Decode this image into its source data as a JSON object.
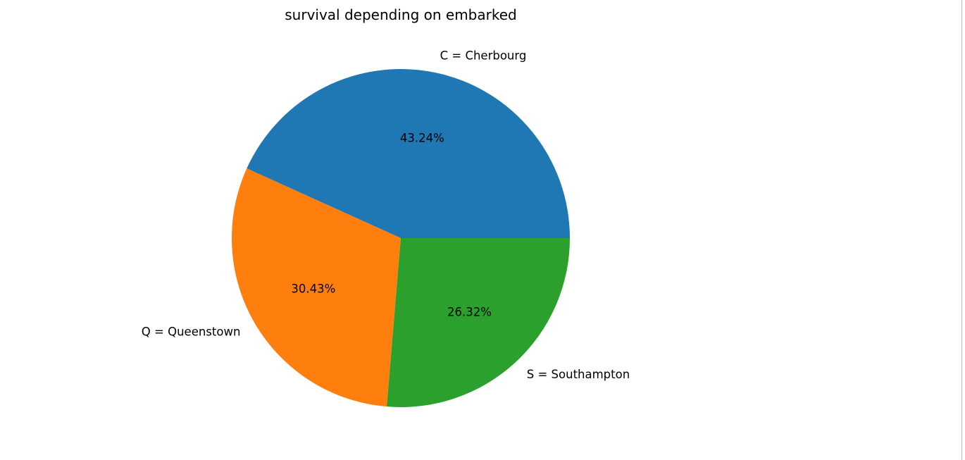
{
  "chart_data": {
    "type": "pie",
    "title": "survival depending on embarked",
    "slices": [
      {
        "label": "C = Cherbourg",
        "value": 43.24,
        "pct_label": "43.24%",
        "color": "#1f77b4"
      },
      {
        "label": "Q = Queenstown",
        "value": 30.43,
        "pct_label": "30.43%",
        "color": "#ff7f0e"
      },
      {
        "label": "S = Southampton",
        "value": 26.32,
        "pct_label": "26.32%",
        "color": "#2ca02c"
      }
    ],
    "start_angle_deg": 0,
    "direction": "counterclockwise"
  }
}
